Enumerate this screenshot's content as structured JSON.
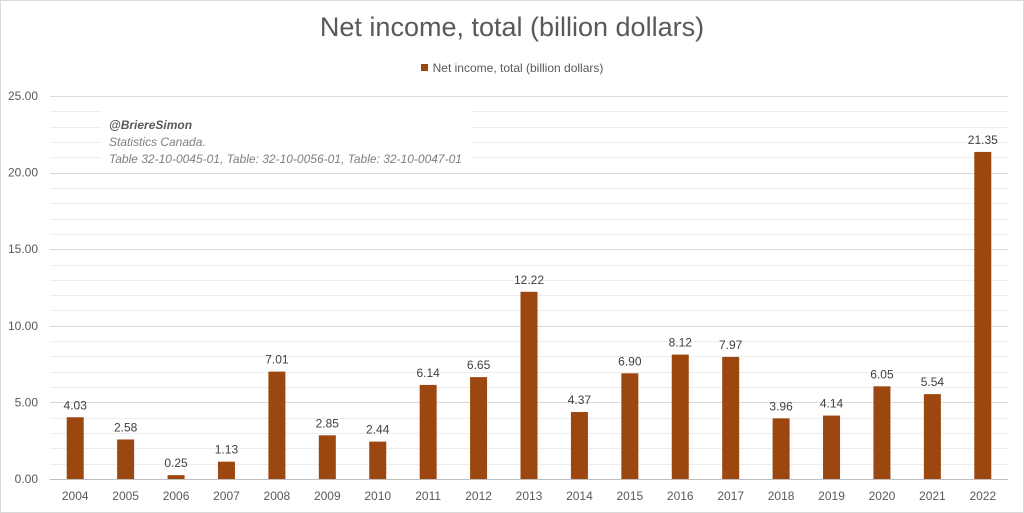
{
  "chart_data": {
    "type": "bar",
    "title": "Net income, total (billion dollars)",
    "xlabel": "",
    "ylabel": "",
    "ylim": [
      0,
      25
    ],
    "yticks": [
      "0.00",
      "5.00",
      "10.00",
      "15.00",
      "20.00",
      "25.00"
    ],
    "grid": true,
    "legend_position": "top",
    "categories": [
      "2004",
      "2005",
      "2006",
      "2007",
      "2008",
      "2009",
      "2010",
      "2011",
      "2012",
      "2013",
      "2014",
      "2015",
      "2016",
      "2017",
      "2018",
      "2019",
      "2020",
      "2021",
      "2022"
    ],
    "series": [
      {
        "name": "Net income, total (billion dollars)",
        "color": "#9c4710",
        "values": [
          4.03,
          2.58,
          0.25,
          1.13,
          7.01,
          2.85,
          2.44,
          6.14,
          6.65,
          12.22,
          4.37,
          6.9,
          8.12,
          7.97,
          3.96,
          4.14,
          6.05,
          5.54,
          21.35
        ],
        "labels": [
          "4.03",
          "2.58",
          "0.25",
          "1.13",
          "7.01",
          "2.85",
          "2.44",
          "6.14",
          "6.65",
          "12.22",
          "4.37",
          "6.90",
          "8.12",
          "7.97",
          "3.96",
          "4.14",
          "6.05",
          "5.54",
          "21.35"
        ]
      }
    ],
    "annotation": {
      "handle": "@BriereSimon",
      "source_line1": "Statistics Canada.",
      "source_line2": "Table 32-10-0045-01, Table: 32-10-0056-01, Table: 32-10-0047-01"
    }
  }
}
